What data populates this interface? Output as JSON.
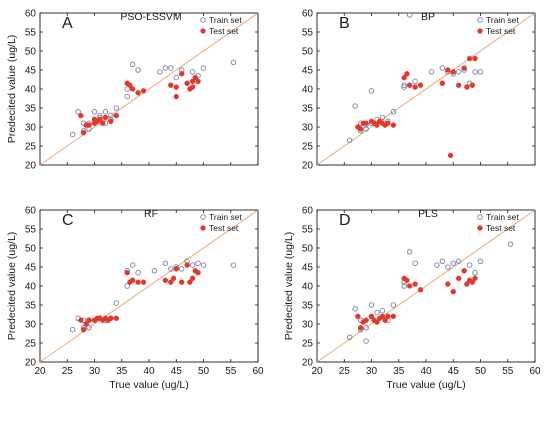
{
  "chart_data": [
    {
      "type": "scatter",
      "panel_letter": "A",
      "title": "PSO-LSSVM",
      "xlabel": "",
      "ylabel": "Predecited value (ug/L)",
      "xlim": [
        20,
        60
      ],
      "ylim": [
        20,
        60
      ],
      "xticks": [],
      "yticks": [
        "20",
        "25",
        "30",
        "35",
        "40",
        "45",
        "50",
        "55",
        "60"
      ],
      "reference_line": "y = x",
      "legend_position": "top-right",
      "series": [
        {
          "name": "Train set",
          "marker": "open-circle",
          "points": [
            [
              26,
              28
            ],
            [
              27,
              34
            ],
            [
              28,
              31
            ],
            [
              28,
              29
            ],
            [
              29,
              29.5
            ],
            [
              29,
              31
            ],
            [
              30,
              34
            ],
            [
              30,
              32
            ],
            [
              31,
              32.5
            ],
            [
              31,
              33
            ],
            [
              32,
              34
            ],
            [
              32,
              31
            ],
            [
              33,
              32
            ],
            [
              33,
              33
            ],
            [
              34,
              35
            ],
            [
              36,
              40
            ],
            [
              36,
              38
            ],
            [
              37,
              46.5
            ],
            [
              38,
              45
            ],
            [
              42,
              44.5
            ],
            [
              43,
              45.5
            ],
            [
              44,
              45.5
            ],
            [
              45,
              43
            ],
            [
              46,
              45
            ],
            [
              48,
              44.5
            ],
            [
              49,
              43.5
            ],
            [
              50,
              45.5
            ],
            [
              55.5,
              47
            ]
          ]
        },
        {
          "name": "Test set",
          "marker": "filled-circle",
          "points": [
            [
              27.5,
              33
            ],
            [
              28,
              28.5
            ],
            [
              28.5,
              30.5
            ],
            [
              29,
              30.5
            ],
            [
              30,
              31
            ],
            [
              30,
              32
            ],
            [
              30.5,
              31.5
            ],
            [
              31,
              32
            ],
            [
              31.5,
              31
            ],
            [
              32,
              32.5
            ],
            [
              33,
              31.5
            ],
            [
              34,
              33
            ],
            [
              36,
              41.5
            ],
            [
              36.5,
              41
            ],
            [
              37,
              40
            ],
            [
              38,
              39
            ],
            [
              39,
              39.5
            ],
            [
              44,
              41
            ],
            [
              45,
              40.5
            ],
            [
              45,
              38
            ],
            [
              46,
              44
            ],
            [
              47,
              41.5
            ],
            [
              47.5,
              40
            ],
            [
              48,
              42
            ],
            [
              48,
              40.5
            ],
            [
              48.5,
              43
            ],
            [
              49,
              42
            ]
          ]
        }
      ]
    },
    {
      "type": "scatter",
      "panel_letter": "B",
      "title": "BP",
      "xlabel": "",
      "ylabel": "",
      "xlim": [
        20,
        60
      ],
      "ylim": [
        20,
        60
      ],
      "xticks": [],
      "yticks": [
        "20",
        "25",
        "30",
        "35",
        "40",
        "45",
        "50",
        "55",
        "60"
      ],
      "reference_line": "y = x",
      "legend_position": "top-right",
      "series": [
        {
          "name": "Train set",
          "marker": "open-circle",
          "points": [
            [
              26,
              26.5
            ],
            [
              27,
              35.5
            ],
            [
              28,
              31
            ],
            [
              28,
              29
            ],
            [
              29,
              30.5
            ],
            [
              29,
              29.5
            ],
            [
              30,
              39.5
            ],
            [
              30,
              31
            ],
            [
              31,
              32
            ],
            [
              32,
              32.5
            ],
            [
              33,
              31.5
            ],
            [
              34,
              34
            ],
            [
              36,
              40.5
            ],
            [
              36,
              41
            ],
            [
              37,
              59.5
            ],
            [
              38,
              42
            ],
            [
              41,
              44.5
            ],
            [
              43,
              45.5
            ],
            [
              44,
              44.5
            ],
            [
              45,
              44
            ],
            [
              46,
              44.5
            ],
            [
              47,
              45
            ],
            [
              48,
              41.5
            ],
            [
              49,
              44.5
            ],
            [
              50,
              44.5
            ]
          ]
        },
        {
          "name": "Test set",
          "marker": "filled-circle",
          "points": [
            [
              27.5,
              30
            ],
            [
              28,
              29.5
            ],
            [
              28.5,
              31
            ],
            [
              29,
              31
            ],
            [
              30,
              31.5
            ],
            [
              30.5,
              31
            ],
            [
              31,
              30.5
            ],
            [
              31.5,
              31.5
            ],
            [
              32,
              31
            ],
            [
              32.5,
              30.5
            ],
            [
              33,
              31
            ],
            [
              34,
              30.5
            ],
            [
              36,
              43
            ],
            [
              36.5,
              44
            ],
            [
              37,
              41
            ],
            [
              38,
              40.5
            ],
            [
              39,
              41
            ],
            [
              43,
              41.5
            ],
            [
              44,
              45
            ],
            [
              44.5,
              22.5
            ],
            [
              45,
              44.5
            ],
            [
              46,
              41
            ],
            [
              47,
              45.5
            ],
            [
              47.5,
              40.5
            ],
            [
              48,
              48
            ],
            [
              48.5,
              41
            ],
            [
              49,
              48
            ]
          ]
        }
      ]
    },
    {
      "type": "scatter",
      "panel_letter": "C",
      "title": "RF",
      "xlabel": "",
      "ylabel": "Predecited value (ug/L)",
      "xlim": [
        20,
        60
      ],
      "ylim": [
        20,
        60
      ],
      "xticks": [],
      "yticks": [
        "20",
        "25",
        "30",
        "35",
        "40",
        "45",
        "50",
        "55",
        "60"
      ],
      "reference_line": "y = x",
      "legend_position": "top-right",
      "series": [
        {
          "name": "Train set",
          "marker": "open-circle",
          "points": [
            [
              26,
              28.5
            ],
            [
              27,
              31.5
            ],
            [
              28,
              29
            ],
            [
              28,
              31
            ],
            [
              29,
              29
            ],
            [
              29,
              31
            ],
            [
              30,
              31
            ],
            [
              31,
              31.5
            ],
            [
              32,
              31
            ],
            [
              33,
              31.5
            ],
            [
              34,
              35.5
            ],
            [
              36,
              40
            ],
            [
              36,
              44
            ],
            [
              37,
              45.5
            ],
            [
              38,
              43.5
            ],
            [
              41,
              44
            ],
            [
              43,
              46
            ],
            [
              44,
              44.5
            ],
            [
              45,
              45
            ],
            [
              46,
              44.5
            ],
            [
              47,
              46.5
            ],
            [
              48,
              45.5
            ],
            [
              49,
              46
            ],
            [
              50,
              45.5
            ],
            [
              55.5,
              45.5
            ]
          ]
        },
        {
          "name": "Test set",
          "marker": "filled-circle",
          "points": [
            [
              27.5,
              31
            ],
            [
              28,
              28.5
            ],
            [
              28.5,
              30
            ],
            [
              29,
              31
            ],
            [
              30,
              31
            ],
            [
              30.5,
              31.5
            ],
            [
              31,
              31.5
            ],
            [
              31.5,
              31
            ],
            [
              32,
              31.5
            ],
            [
              32.5,
              31
            ],
            [
              33,
              31.5
            ],
            [
              34,
              31.5
            ],
            [
              36,
              43.5
            ],
            [
              36.5,
              41
            ],
            [
              37,
              41.5
            ],
            [
              38,
              41
            ],
            [
              39,
              41
            ],
            [
              43,
              41.5
            ],
            [
              44,
              41
            ],
            [
              44.5,
              42
            ],
            [
              45,
              44.5
            ],
            [
              46,
              41
            ],
            [
              47,
              45.5
            ],
            [
              47.5,
              41
            ],
            [
              48,
              42
            ],
            [
              48.5,
              44
            ],
            [
              49,
              43.5
            ]
          ]
        }
      ]
    },
    {
      "type": "scatter",
      "panel_letter": "D",
      "title": "PLS",
      "xlabel": "True value (ug/L)",
      "ylabel": "Predecited value (ug/L)",
      "xlim": [
        20,
        60
      ],
      "ylim": [
        20,
        60
      ],
      "xticks": [
        "20",
        "25",
        "30",
        "35",
        "40",
        "45",
        "50",
        "55",
        "60"
      ],
      "yticks": [
        "20",
        "25",
        "30",
        "35",
        "40",
        "45",
        "50",
        "55",
        "60"
      ],
      "reference_line": "y = x",
      "legend_position": "top-right",
      "series": [
        {
          "name": "Train set",
          "marker": "open-circle",
          "points": [
            [
              26,
              26.5
            ],
            [
              27,
              34
            ],
            [
              28,
              28.5
            ],
            [
              28,
              31
            ],
            [
              29,
              25.5
            ],
            [
              29,
              29
            ],
            [
              30,
              35
            ],
            [
              30,
              32
            ],
            [
              31,
              33
            ],
            [
              32,
              33.5
            ],
            [
              33,
              31
            ],
            [
              34,
              35
            ],
            [
              36,
              40
            ],
            [
              36,
              41
            ],
            [
              37,
              49
            ],
            [
              38,
              46
            ],
            [
              42,
              45.5
            ],
            [
              43,
              46.5
            ],
            [
              44,
              45
            ],
            [
              45,
              46
            ],
            [
              46,
              46.5
            ],
            [
              48,
              45.5
            ],
            [
              49,
              43.5
            ],
            [
              50,
              46.5
            ],
            [
              55.5,
              51
            ]
          ]
        },
        {
          "name": "Test set",
          "marker": "filled-circle",
          "points": [
            [
              27.5,
              32
            ],
            [
              28,
              29
            ],
            [
              28.5,
              30.5
            ],
            [
              29,
              31
            ],
            [
              30,
              32
            ],
            [
              30.5,
              31
            ],
            [
              31,
              30.5
            ],
            [
              31.5,
              31.5
            ],
            [
              32,
              32
            ],
            [
              32.5,
              31
            ],
            [
              33,
              32
            ],
            [
              34,
              32
            ],
            [
              36,
              42
            ],
            [
              36.5,
              41.5
            ],
            [
              37,
              40
            ],
            [
              38,
              40.5
            ],
            [
              39,
              39
            ],
            [
              44,
              40.5
            ],
            [
              45,
              38.5
            ],
            [
              46,
              42
            ],
            [
              47,
              44
            ],
            [
              47.5,
              40.5
            ],
            [
              48,
              41.5
            ],
            [
              48.5,
              41
            ],
            [
              49,
              42
            ]
          ]
        }
      ]
    }
  ],
  "shared": {
    "xlabel": "True value (ug/L)",
    "xticks": [
      "20",
      "25",
      "30",
      "35",
      "40",
      "45",
      "50",
      "55",
      "60"
    ]
  },
  "colors": {
    "train": "#7d7fa8",
    "test": "#e03a2e",
    "reference_line": "#e8a97a",
    "axis": "#1a1a1a"
  }
}
